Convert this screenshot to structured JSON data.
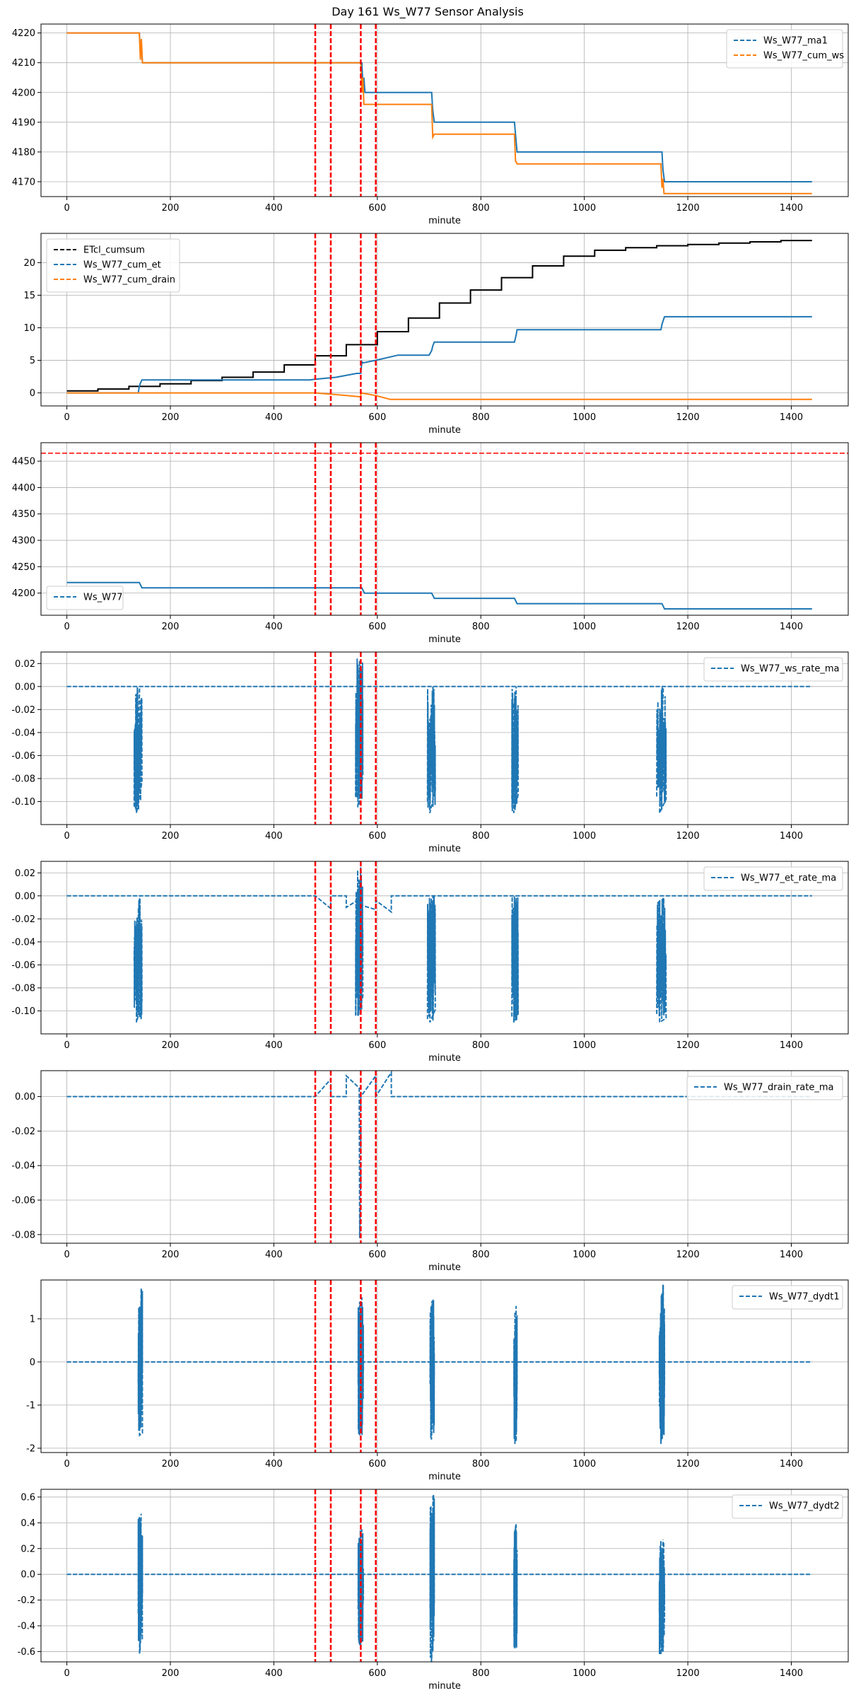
{
  "figure_title": "Day 161 Ws_W77 Sensor Analysis",
  "colors": {
    "blue": "#1f77b4",
    "orange": "#ff7f0e",
    "black": "#000000",
    "red": "#ff0000",
    "grid": "#b0b0b0"
  },
  "chart_data": [
    {
      "type": "line",
      "xlabel": "minute",
      "xlim": [
        -50,
        1510
      ],
      "ylim": [
        4165,
        4223
      ],
      "xticks": [
        0,
        200,
        400,
        600,
        800,
        1000,
        1200,
        1400
      ],
      "yticks": [
        4170,
        4180,
        4190,
        4200,
        4210,
        4220
      ],
      "ytick_labels": [
        "4170",
        "4180",
        "4190",
        "4200",
        "4210",
        "4220"
      ],
      "legend_position": "top-right",
      "vlines": [
        480,
        510,
        568,
        597
      ],
      "hlines": [],
      "series": [
        {
          "name": "Ws_W77_ma1",
          "color": "blue",
          "dashed": false,
          "x": [
            0,
            140,
            142,
            144,
            146,
            570,
            572,
            574,
            576,
            705,
            707,
            710,
            865,
            868,
            870,
            1150,
            1152,
            1155,
            1440
          ],
          "y": [
            4220,
            4220,
            4214,
            4216,
            4210,
            4210,
            4203,
            4205,
            4200,
            4200,
            4194,
            4190,
            4190,
            4184,
            4180,
            4180,
            4174,
            4170,
            4170
          ],
          "noise": []
        },
        {
          "name": "Ws_W77_cum_ws",
          "color": "orange",
          "dashed": false,
          "x": [
            0,
            140,
            142,
            144,
            146,
            568,
            570,
            572,
            574,
            705,
            707,
            710,
            865,
            867,
            870,
            1148,
            1150,
            1152,
            1154,
            1440
          ],
          "y": [
            4220,
            4220,
            4211,
            4218,
            4210,
            4210,
            4200,
            4205,
            4196,
            4196,
            4185,
            4186,
            4186,
            4177,
            4176,
            4176,
            4168,
            4171,
            4166,
            4166
          ],
          "noise": []
        }
      ]
    },
    {
      "type": "line",
      "xlabel": "minute",
      "xlim": [
        -50,
        1510
      ],
      "ylim": [
        -2,
        24.5
      ],
      "xticks": [
        0,
        200,
        400,
        600,
        800,
        1000,
        1200,
        1400
      ],
      "yticks": [
        0,
        5,
        10,
        15,
        20
      ],
      "ytick_labels": [
        "0",
        "5",
        "10",
        "15",
        "20"
      ],
      "legend_position": "top-left",
      "vlines": [
        480,
        510,
        568,
        597
      ],
      "hlines": [],
      "series": [
        {
          "name": "ETcl_cumsum",
          "color": "black",
          "dashed": false,
          "x": [
            0,
            60,
            60,
            120,
            120,
            180,
            180,
            240,
            240,
            300,
            300,
            360,
            360,
            420,
            420,
            480,
            480,
            540,
            540,
            600,
            600,
            660,
            660,
            720,
            720,
            780,
            780,
            840,
            840,
            900,
            900,
            960,
            960,
            1020,
            1020,
            1080,
            1080,
            1140,
            1140,
            1200,
            1200,
            1260,
            1260,
            1320,
            1320,
            1380,
            1380,
            1440
          ],
          "y": [
            0.3,
            0.3,
            0.6,
            0.6,
            1.0,
            1.0,
            1.4,
            1.4,
            1.9,
            1.9,
            2.4,
            2.4,
            3.2,
            3.2,
            4.3,
            4.3,
            5.7,
            5.7,
            7.4,
            7.4,
            9.4,
            9.4,
            11.5,
            11.5,
            13.8,
            13.8,
            15.8,
            15.8,
            17.7,
            17.7,
            19.5,
            19.5,
            21.0,
            21.0,
            21.9,
            21.9,
            22.3,
            22.3,
            22.6,
            22.6,
            22.8,
            22.8,
            23.0,
            23.0,
            23.2,
            23.2,
            23.4,
            23.4
          ],
          "noise": []
        },
        {
          "name": "Ws_W77_cum_et",
          "color": "blue",
          "dashed": false,
          "x": [
            0,
            138,
            140,
            142,
            145,
            470,
            480,
            520,
            560,
            568,
            570,
            572,
            597,
            640,
            700,
            705,
            707,
            710,
            865,
            868,
            870,
            1148,
            1150,
            1152,
            1155,
            1440
          ],
          "y": [
            0,
            0,
            1.0,
            1.5,
            2.0,
            2.0,
            2.1,
            2.4,
            3.0,
            3.0,
            4.8,
            4.6,
            5.0,
            5.8,
            5.8,
            6.5,
            7.2,
            7.8,
            7.8,
            8.8,
            9.7,
            9.7,
            10.5,
            11.0,
            11.7,
            11.7
          ],
          "noise": []
        },
        {
          "name": "Ws_W77_cum_drain",
          "color": "orange",
          "dashed": false,
          "x": [
            0,
            480,
            510,
            540,
            568,
            568,
            597,
            625,
            640,
            1440
          ],
          "y": [
            0,
            0,
            -0.2,
            -0.4,
            -0.6,
            0,
            -0.4,
            -1.0,
            -1.0,
            -1.0
          ],
          "noise": []
        }
      ]
    },
    {
      "type": "line",
      "xlabel": "minute",
      "xlim": [
        -50,
        1510
      ],
      "ylim": [
        4158,
        4485
      ],
      "xticks": [
        0,
        200,
        400,
        600,
        800,
        1000,
        1200,
        1400
      ],
      "yticks": [
        4200,
        4250,
        4300,
        4350,
        4400,
        4450
      ],
      "ytick_labels": [
        "4200",
        "4250",
        "4300",
        "4350",
        "4400",
        "4450"
      ],
      "legend_position": "bottom-left",
      "vlines": [
        480,
        510,
        568,
        597
      ],
      "hlines": [
        4465
      ],
      "series": [
        {
          "name": "Ws_W77",
          "color": "blue",
          "dashed": false,
          "x": [
            0,
            140,
            145,
            570,
            575,
            705,
            710,
            865,
            870,
            1150,
            1155,
            1440
          ],
          "y": [
            4220,
            4220,
            4210,
            4210,
            4200,
            4200,
            4190,
            4190,
            4180,
            4180,
            4170,
            4170
          ],
          "noise": []
        }
      ]
    },
    {
      "type": "line",
      "xlabel": "minute",
      "xlim": [
        -50,
        1510
      ],
      "ylim": [
        -0.12,
        0.03
      ],
      "xticks": [
        0,
        200,
        400,
        600,
        800,
        1000,
        1200,
        1400
      ],
      "yticks": [
        0.02,
        0,
        -0.02,
        -0.04,
        -0.06,
        -0.08,
        -0.1
      ],
      "ytick_labels": [
        "0.02",
        "0.00",
        "-0.02",
        "-0.04",
        "-0.06",
        "-0.08",
        "-0.10"
      ],
      "legend_position": "top-right",
      "vlines": [
        480,
        510,
        568,
        597
      ],
      "hlines": [],
      "series": [
        {
          "name": "Ws_W77_ws_rate_ma",
          "color": "blue",
          "dashed": true,
          "x": [
            0,
            1440
          ],
          "y": [
            0,
            0
          ],
          "noise": [
            {
              "x0": 130,
              "x1": 145,
              "lo": -0.11,
              "hi": 0
            },
            {
              "x0": 558,
              "x1": 572,
              "lo": -0.105,
              "hi": 0.025
            },
            {
              "x0": 697,
              "x1": 712,
              "lo": -0.11,
              "hi": 0
            },
            {
              "x0": 860,
              "x1": 872,
              "lo": -0.11,
              "hi": 0
            },
            {
              "x0": 1140,
              "x1": 1158,
              "lo": -0.11,
              "hi": 0
            }
          ]
        }
      ]
    },
    {
      "type": "line",
      "xlabel": "minute",
      "xlim": [
        -50,
        1510
      ],
      "ylim": [
        -0.12,
        0.03
      ],
      "xticks": [
        0,
        200,
        400,
        600,
        800,
        1000,
        1200,
        1400
      ],
      "yticks": [
        0.02,
        0,
        -0.02,
        -0.04,
        -0.06,
        -0.08,
        -0.1
      ],
      "ytick_labels": [
        "0.02",
        "0.00",
        "-0.02",
        "-0.04",
        "-0.06",
        "-0.08",
        "-0.10"
      ],
      "legend_position": "top-right",
      "vlines": [
        480,
        510,
        568,
        597
      ],
      "hlines": [],
      "series": [
        {
          "name": "Ws_W77_et_rate_ma",
          "color": "blue",
          "dashed": true,
          "x": [
            0,
            480,
            510,
            510,
            540,
            540,
            568,
            568,
            597,
            597,
            627,
            627,
            1440
          ],
          "y": [
            0,
            0,
            -0.011,
            0,
            0,
            -0.01,
            -0.002,
            -0.008,
            -0.012,
            -0.004,
            -0.014,
            0,
            0
          ],
          "noise": [
            {
              "x0": 130,
              "x1": 145,
              "lo": -0.11,
              "hi": 0
            },
            {
              "x0": 558,
              "x1": 572,
              "lo": -0.105,
              "hi": 0.025
            },
            {
              "x0": 697,
              "x1": 712,
              "lo": -0.11,
              "hi": 0
            },
            {
              "x0": 860,
              "x1": 872,
              "lo": -0.11,
              "hi": 0
            },
            {
              "x0": 1140,
              "x1": 1158,
              "lo": -0.11,
              "hi": 0
            }
          ]
        }
      ]
    },
    {
      "type": "line",
      "xlabel": "minute",
      "xlim": [
        -50,
        1510
      ],
      "ylim": [
        -0.085,
        0.015
      ],
      "xticks": [
        0,
        200,
        400,
        600,
        800,
        1000,
        1200,
        1400
      ],
      "yticks": [
        0,
        -0.02,
        -0.04,
        -0.06,
        -0.08
      ],
      "ytick_labels": [
        "0.00",
        "-0.02",
        "-0.04",
        "-0.06",
        "-0.08"
      ],
      "legend_position": "top-right",
      "vlines": [
        480,
        510,
        568,
        597
      ],
      "hlines": [],
      "series": [
        {
          "name": "Ws_W77_drain_rate_ma",
          "color": "blue",
          "dashed": true,
          "x": [
            0,
            480,
            510,
            510,
            540,
            540,
            565,
            566,
            568,
            568,
            597,
            597,
            627,
            627,
            1440
          ],
          "y": [
            0,
            0,
            0.01,
            0,
            0,
            0.012,
            0.005,
            -0.082,
            -0.05,
            0,
            0.012,
            0,
            0.014,
            0,
            0
          ],
          "noise": []
        }
      ]
    },
    {
      "type": "line",
      "xlabel": "minute",
      "xlim": [
        -50,
        1510
      ],
      "ylim": [
        -2.1,
        1.9
      ],
      "xticks": [
        0,
        200,
        400,
        600,
        800,
        1000,
        1200,
        1400
      ],
      "yticks": [
        1,
        0,
        -1,
        -2
      ],
      "ytick_labels": [
        "1",
        "0",
        "-1",
        "-2"
      ],
      "legend_position": "top-right",
      "vlines": [
        480,
        510,
        568,
        597
      ],
      "hlines": [],
      "series": [
        {
          "name": "Ws_W77_dydt1",
          "color": "blue",
          "dashed": true,
          "x": [
            0,
            1440
          ],
          "y": [
            0,
            0
          ],
          "noise": [
            {
              "x0": 138,
              "x1": 146,
              "lo": -1.7,
              "hi": 1.7
            },
            {
              "x0": 563,
              "x1": 573,
              "lo": -1.7,
              "hi": 1.5
            },
            {
              "x0": 702,
              "x1": 710,
              "lo": -1.8,
              "hi": 1.45
            },
            {
              "x0": 864,
              "x1": 870,
              "lo": -1.9,
              "hi": 1.3
            },
            {
              "x0": 1145,
              "x1": 1155,
              "lo": -1.9,
              "hi": 1.8
            }
          ]
        }
      ]
    },
    {
      "type": "line",
      "xlabel": "minute",
      "xlim": [
        -50,
        1510
      ],
      "ylim": [
        -0.68,
        0.66
      ],
      "xticks": [
        0,
        200,
        400,
        600,
        800,
        1000,
        1200,
        1400
      ],
      "yticks": [
        0.6,
        0.4,
        0.2,
        0,
        -0.2,
        -0.4,
        -0.6
      ],
      "ytick_labels": [
        "0.6",
        "0.4",
        "0.2",
        "0.0",
        "-0.2",
        "-0.4",
        "-0.6"
      ],
      "legend_position": "top-right",
      "vlines": [
        480,
        510,
        568,
        597
      ],
      "hlines": [],
      "series": [
        {
          "name": "Ws_W77_dydt2",
          "color": "blue",
          "dashed": true,
          "x": [
            0,
            1440
          ],
          "y": [
            0,
            0
          ],
          "noise": [
            {
              "x0": 138,
              "x1": 146,
              "lo": -0.62,
              "hi": 0.47
            },
            {
              "x0": 563,
              "x1": 573,
              "lo": -0.55,
              "hi": 0.35
            },
            {
              "x0": 702,
              "x1": 710,
              "lo": -0.7,
              "hi": 0.62
            },
            {
              "x0": 864,
              "x1": 870,
              "lo": -0.58,
              "hi": 0.39
            },
            {
              "x0": 1145,
              "x1": 1155,
              "lo": -0.62,
              "hi": 0.27
            }
          ]
        }
      ]
    }
  ]
}
